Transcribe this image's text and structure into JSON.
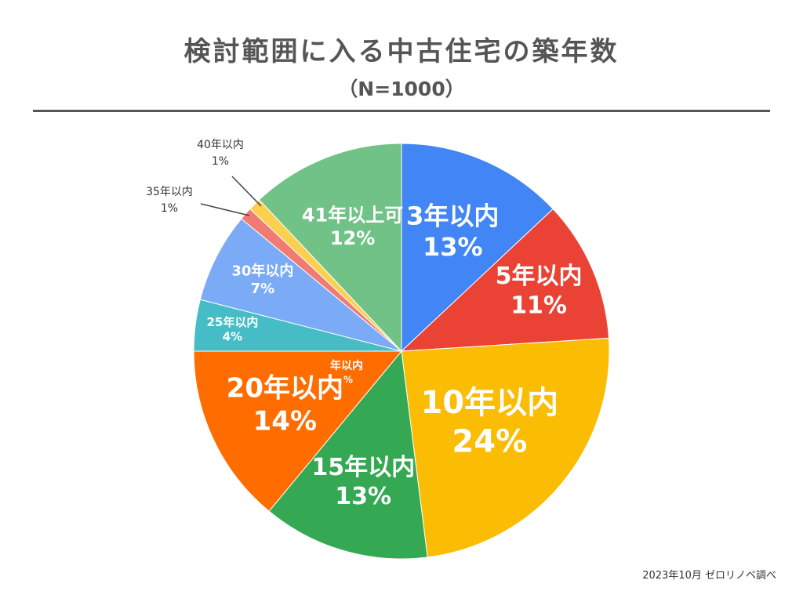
{
  "header": {
    "title": "検討範囲に入る中古住宅の築年数",
    "subtitle": "（N=1000）"
  },
  "footer": {
    "source": "2023年10月 ゼロリノベ調べ"
  },
  "chart_data": {
    "type": "pie",
    "title": "検討範囲に入る中古住宅の築年数",
    "subtitle": "（N=1000）",
    "legend": "none",
    "slices": [
      {
        "label": "3年以内",
        "percent_label": "13%",
        "value": 13,
        "color": "#4285F4",
        "text_color": "#ffffff"
      },
      {
        "label": "5年以内",
        "percent_label": "11%",
        "value": 11,
        "color": "#EA4335",
        "text_color": "#ffffff"
      },
      {
        "label": "10年以内",
        "percent_label": "24%",
        "value": 24,
        "color": "#FBBC04",
        "text_color": "#ffffff"
      },
      {
        "label": "15年以内",
        "percent_label": "13%",
        "value": 13,
        "color": "#34A853",
        "text_color": "#ffffff"
      },
      {
        "label": "年以内",
        "percent_label": "%",
        "value": 0,
        "color": "#34A853",
        "text_color": "#ffffff"
      },
      {
        "label": "20年以内",
        "percent_label": "14%",
        "value": 14,
        "color": "#FF6D01",
        "text_color": "#ffffff"
      },
      {
        "label": "25年以内",
        "percent_label": "4%",
        "value": 4,
        "color": "#46BDC6",
        "text_color": "#ffffff"
      },
      {
        "label": "30年以内",
        "percent_label": "7%",
        "value": 7,
        "color": "#7BAAF7",
        "text_color": "#ffffff"
      },
      {
        "label": "35年以内",
        "percent_label": "1%",
        "value": 1,
        "color": "#F07B72",
        "text_color": "#333333"
      },
      {
        "label": "40年以内",
        "percent_label": "1%",
        "value": 1,
        "color": "#FCD04F",
        "text_color": "#333333"
      },
      {
        "label": "41年以上可",
        "percent_label": "12%",
        "value": 12,
        "color": "#71C287",
        "text_color": "#ffffff"
      }
    ]
  }
}
